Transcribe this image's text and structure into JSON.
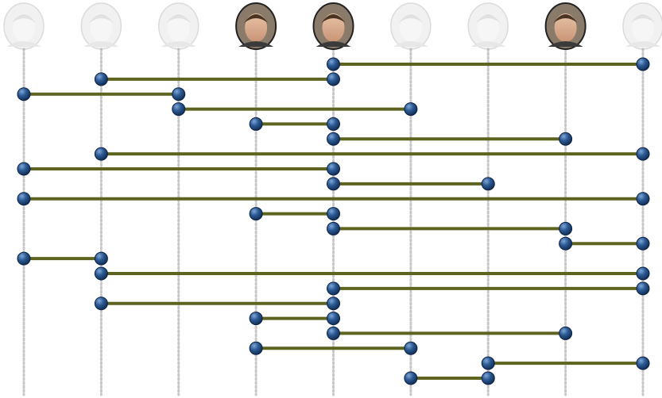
{
  "people": [
    {
      "highlighted": false
    },
    {
      "highlighted": false
    },
    {
      "highlighted": false
    },
    {
      "highlighted": true
    },
    {
      "highlighted": true
    },
    {
      "highlighted": false
    },
    {
      "highlighted": false
    },
    {
      "highlighted": true
    },
    {
      "highlighted": false
    }
  ],
  "links": [
    {
      "from": 4,
      "to": 8
    },
    {
      "from": 1,
      "to": 4
    },
    {
      "from": 0,
      "to": 2
    },
    {
      "from": 2,
      "to": 5
    },
    {
      "from": 3,
      "to": 4
    },
    {
      "from": 4,
      "to": 7
    },
    {
      "from": 1,
      "to": 8
    },
    {
      "from": 0,
      "to": 4
    },
    {
      "from": 4,
      "to": 6
    },
    {
      "from": 0,
      "to": 8
    },
    {
      "from": 3,
      "to": 4
    },
    {
      "from": 4,
      "to": 7
    },
    {
      "from": 7,
      "to": 8
    },
    {
      "from": 0,
      "to": 1
    },
    {
      "from": 1,
      "to": 8
    },
    {
      "from": 4,
      "to": 8
    },
    {
      "from": 1,
      "to": 4
    },
    {
      "from": 3,
      "to": 4
    },
    {
      "from": 4,
      "to": 7
    },
    {
      "from": 3,
      "to": 5
    },
    {
      "from": 6,
      "to": 8
    },
    {
      "from": 5,
      "to": 6
    }
  ]
}
